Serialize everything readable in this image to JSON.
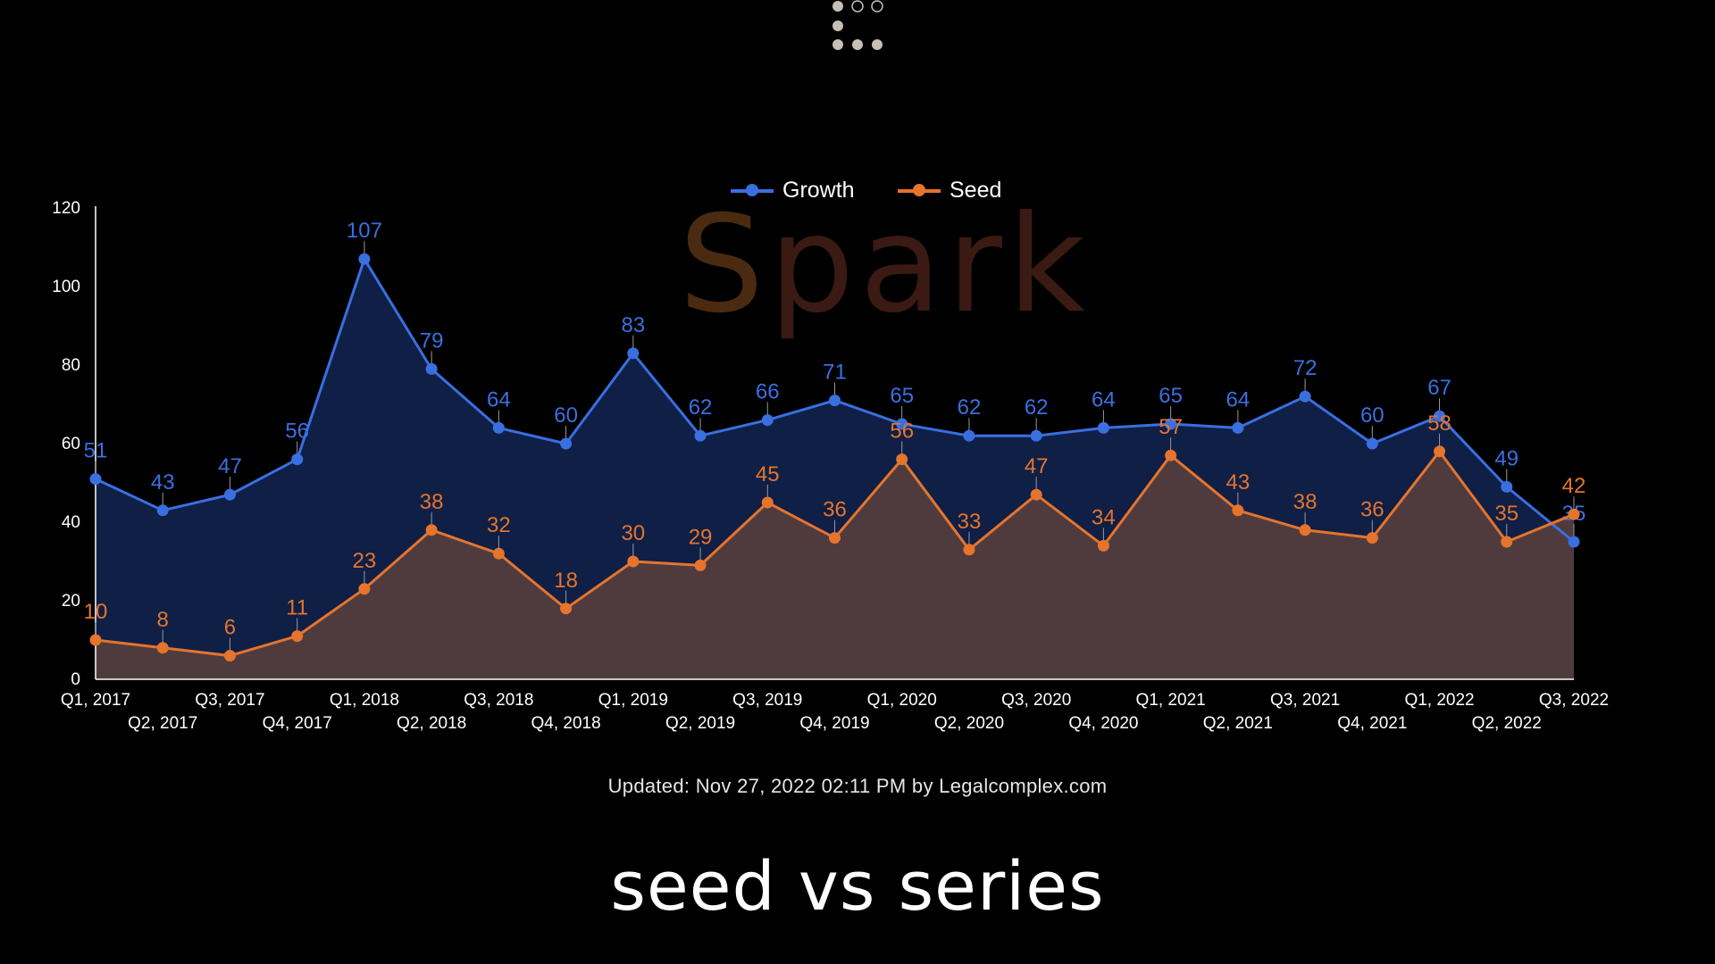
{
  "logo_text": "Spark",
  "footer": {
    "updated": "Updated: Nov 27, 2022 02:11 PM by Legalcomplex.com",
    "title": "seed vs series"
  },
  "colors": {
    "background": "#000000",
    "growth_line": "#3a6fe0",
    "growth_fill": "#0f1f45",
    "seed_line": "#e5742d",
    "seed_fill": "#4f3b3e",
    "axis_text": "#ffffff"
  },
  "chart_data": {
    "type": "area",
    "categories": [
      "Q1, 2017",
      "Q2, 2017",
      "Q3, 2017",
      "Q4, 2017",
      "Q1, 2018",
      "Q2, 2018",
      "Q3, 2018",
      "Q4, 2018",
      "Q1, 2019",
      "Q2, 2019",
      "Q3, 2019",
      "Q4, 2019",
      "Q1, 2020",
      "Q2, 2020",
      "Q3, 2020",
      "Q4, 2020",
      "Q1, 2021",
      "Q2, 2021",
      "Q3, 2021",
      "Q4, 2021",
      "Q1, 2022",
      "Q2, 2022",
      "Q3, 2022"
    ],
    "series": [
      {
        "name": "Growth",
        "values": [
          51,
          43,
          47,
          56,
          107,
          79,
          64,
          60,
          83,
          62,
          66,
          71,
          65,
          62,
          62,
          64,
          65,
          64,
          72,
          60,
          67,
          49,
          35
        ]
      },
      {
        "name": "Seed",
        "values": [
          10,
          8,
          6,
          11,
          23,
          38,
          32,
          18,
          30,
          29,
          45,
          36,
          56,
          33,
          47,
          34,
          57,
          43,
          38,
          36,
          58,
          35,
          42
        ]
      }
    ],
    "ylim": [
      0,
      120
    ],
    "yticks": [
      0,
      20,
      40,
      60,
      80,
      100,
      120
    ],
    "legend_position": "top-center",
    "grid": false
  }
}
